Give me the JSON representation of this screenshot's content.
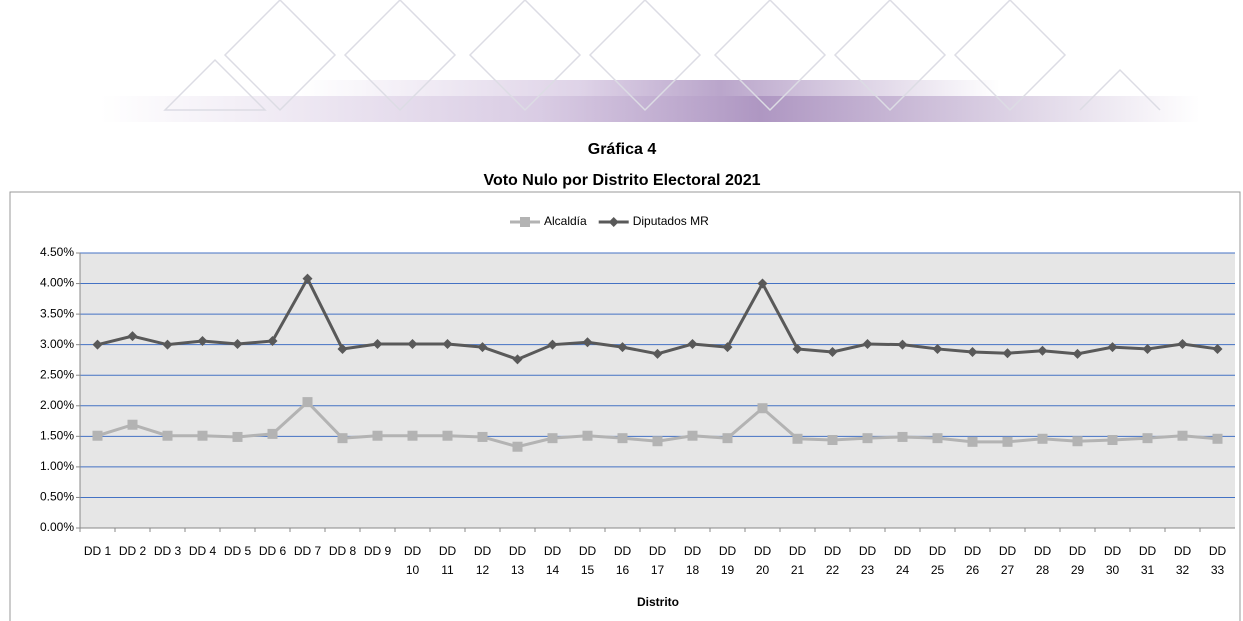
{
  "chart_data": {
    "type": "line",
    "title": "Gráfica 4",
    "subtitle": "Voto Nulo por Distrito Electoral 2021",
    "x_label": "Distrito",
    "categories": [
      "DD 1",
      "DD 2",
      "DD 3",
      "DD 4",
      "DD 5",
      "DD 6",
      "DD 7",
      "DD 8",
      "DD 9",
      "DD 10",
      "DD 11",
      "DD 12",
      "DD 13",
      "DD 14",
      "DD 15",
      "DD 16",
      "DD 17",
      "DD 18",
      "DD 19",
      "DD 20",
      "DD 21",
      "DD 22",
      "DD 23",
      "DD 24",
      "DD 25",
      "DD 26",
      "DD 27",
      "DD 28",
      "DD 29",
      "DD 30",
      "DD 31",
      "DD 32",
      "DD 33"
    ],
    "series": [
      {
        "name": "Alcaldía",
        "color": "#b3b3b3",
        "marker": "square",
        "values": [
          1.51,
          1.69,
          1.51,
          1.51,
          1.49,
          1.54,
          2.06,
          1.47,
          1.51,
          1.51,
          1.51,
          1.49,
          1.33,
          1.47,
          1.51,
          1.47,
          1.42,
          1.51,
          1.47,
          1.96,
          1.46,
          1.44,
          1.47,
          1.49,
          1.47,
          1.41,
          1.41,
          1.46,
          1.42,
          1.44,
          1.47,
          1.51,
          1.46
        ]
      },
      {
        "name": "Diputados MR",
        "color": "#595959",
        "marker": "diamond",
        "values": [
          3.0,
          3.14,
          3.0,
          3.06,
          3.01,
          3.06,
          4.08,
          2.93,
          3.01,
          3.01,
          3.01,
          2.96,
          2.76,
          3.0,
          3.04,
          2.96,
          2.85,
          3.01,
          2.96,
          4.0,
          2.93,
          2.88,
          3.01,
          3.0,
          2.93,
          2.88,
          2.86,
          2.9,
          2.85,
          2.96,
          2.93,
          3.01,
          2.93
        ]
      }
    ],
    "ylim": [
      0,
      4.5
    ],
    "yticks": [
      {
        "value": 0,
        "label": "0.00%"
      },
      {
        "value": 0.5,
        "label": "0.50%"
      },
      {
        "value": 1,
        "label": "1.00%"
      },
      {
        "value": 1.5,
        "label": "1.50%"
      },
      {
        "value": 2,
        "label": "2.00%"
      },
      {
        "value": 2.5,
        "label": "2.50%"
      },
      {
        "value": 3,
        "label": "3.00%"
      },
      {
        "value": 3.5,
        "label": "3.50%"
      },
      {
        "value": 4,
        "label": "4.00%"
      },
      {
        "value": 4.5,
        "label": "4.50%"
      }
    ],
    "grid": true,
    "grid_color": "#4472c4",
    "plot_background": "#e6e6e6",
    "legend": "top"
  }
}
